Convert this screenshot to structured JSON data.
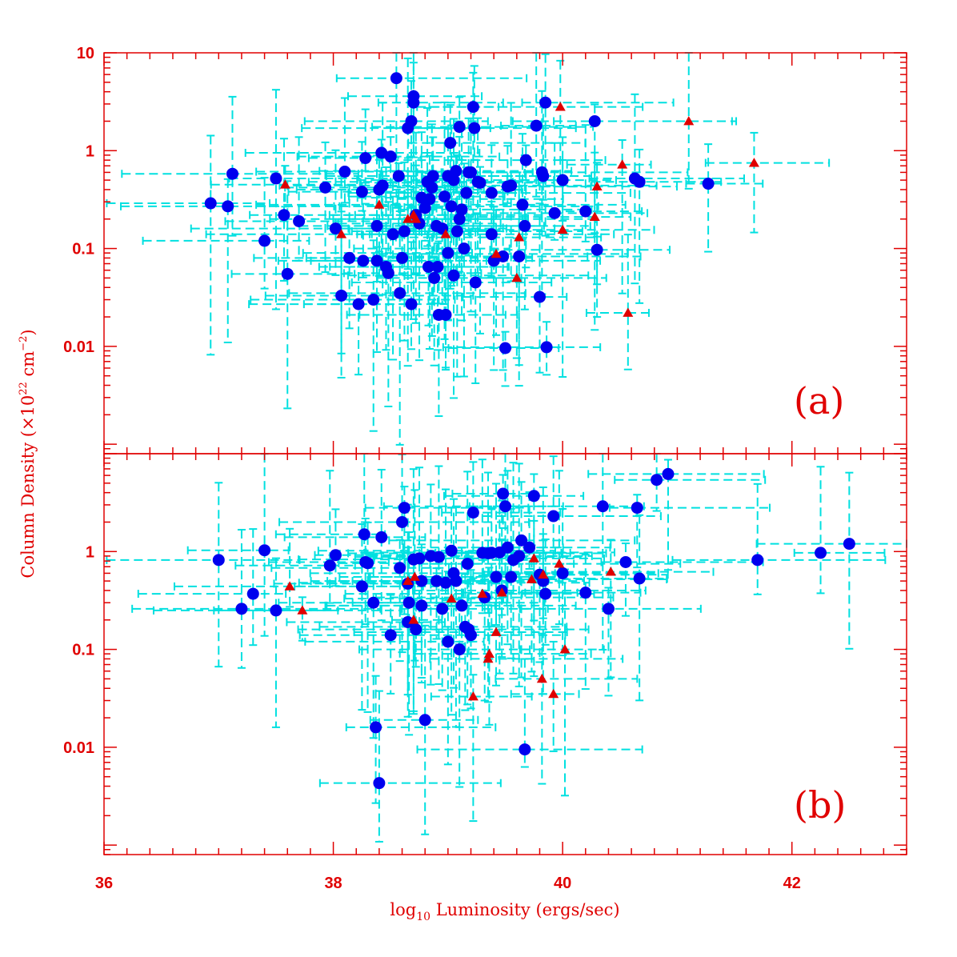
{
  "colors": {
    "axes": "#e00000",
    "errorbar": "#00e0e0",
    "circle": "#0000ee",
    "triangle": "#e00000"
  },
  "chart_data": {
    "type": "scatter",
    "xlabel_base": "log",
    "xlabel_sub": "10",
    "xlabel_rest": " Luminosity (ergs/sec)",
    "ylabel_pre": "Column Density (×10",
    "ylabel_exp1": "22",
    "ylabel_mid": " cm",
    "ylabel_exp2": "−2",
    "ylabel_post": ")",
    "x_range": [
      36,
      43
    ],
    "x_ticks": [
      36,
      38,
      40,
      42
    ],
    "x_tick_labels": [
      "36",
      "38",
      "40",
      "42"
    ],
    "y_scale": "log",
    "grid": false,
    "panels": [
      {
        "label": "(a)",
        "y_range": [
          0.0008,
          10
        ],
        "y_ticks": [
          10,
          1,
          0.1,
          0.01
        ],
        "y_tick_labels": [
          "10",
          "1",
          "0.1",
          "0.01"
        ],
        "circles": [
          [
            36.93,
            0.29
          ],
          [
            37.08,
            0.27
          ],
          [
            37.12,
            0.58
          ],
          [
            37.4,
            0.12
          ],
          [
            37.5,
            0.52
          ],
          [
            37.57,
            0.22
          ],
          [
            37.6,
            0.055
          ],
          [
            37.7,
            0.19
          ],
          [
            37.93,
            0.42
          ],
          [
            38.02,
            0.16
          ],
          [
            38.07,
            0.033
          ],
          [
            38.1,
            0.61
          ],
          [
            38.14,
            0.08
          ],
          [
            38.22,
            0.027
          ],
          [
            38.25,
            0.38
          ],
          [
            38.26,
            0.075
          ],
          [
            38.28,
            0.84
          ],
          [
            38.35,
            0.03
          ],
          [
            38.38,
            0.075
          ],
          [
            38.38,
            0.17
          ],
          [
            38.4,
            0.4
          ],
          [
            38.42,
            0.95
          ],
          [
            38.43,
            0.44
          ],
          [
            38.46,
            0.065
          ],
          [
            38.48,
            0.056
          ],
          [
            38.5,
            0.87
          ],
          [
            38.52,
            0.14
          ],
          [
            38.55,
            5.5
          ],
          [
            38.57,
            0.55
          ],
          [
            38.58,
            0.035
          ],
          [
            38.6,
            0.08
          ],
          [
            38.62,
            0.15
          ],
          [
            38.65,
            1.7
          ],
          [
            38.68,
            0.027
          ],
          [
            38.68,
            2.0
          ],
          [
            38.7,
            3.6
          ],
          [
            38.7,
            3.1
          ],
          [
            38.72,
            0.22
          ],
          [
            38.75,
            0.18
          ],
          [
            38.77,
            0.33
          ],
          [
            38.8,
            0.26
          ],
          [
            38.82,
            0.48
          ],
          [
            38.83,
            0.065
          ],
          [
            38.84,
            0.32
          ],
          [
            38.86,
            0.42
          ],
          [
            38.87,
            0.55
          ],
          [
            38.88,
            0.05
          ],
          [
            38.9,
            0.17
          ],
          [
            38.91,
            0.065
          ],
          [
            38.92,
            0.021
          ],
          [
            38.95,
            0.16
          ],
          [
            38.97,
            0.34
          ],
          [
            38.98,
            0.021
          ],
          [
            39.0,
            0.55
          ],
          [
            39.0,
            0.09
          ],
          [
            39.02,
            1.2
          ],
          [
            39.03,
            0.27
          ],
          [
            39.05,
            0.053
          ],
          [
            39.05,
            0.5
          ],
          [
            39.07,
            0.62
          ],
          [
            39.08,
            0.15
          ],
          [
            39.1,
            1.75
          ],
          [
            39.1,
            0.2
          ],
          [
            39.12,
            0.25
          ],
          [
            39.14,
            0.1
          ],
          [
            39.16,
            0.37
          ],
          [
            39.18,
            0.6
          ],
          [
            39.2,
            0.6
          ],
          [
            39.22,
            2.8
          ],
          [
            39.23,
            1.7
          ],
          [
            39.24,
            0.045
          ],
          [
            39.26,
            0.48
          ],
          [
            39.28,
            0.47
          ],
          [
            39.38,
            0.14
          ],
          [
            39.38,
            0.37
          ],
          [
            39.4,
            0.075
          ],
          [
            39.48,
            0.083
          ],
          [
            39.5,
            0.0096
          ],
          [
            39.52,
            0.43
          ],
          [
            39.55,
            0.44
          ],
          [
            39.62,
            0.083
          ],
          [
            39.65,
            0.28
          ],
          [
            39.67,
            0.17
          ],
          [
            39.68,
            0.8
          ],
          [
            39.77,
            1.8
          ],
          [
            39.8,
            0.032
          ],
          [
            39.82,
            0.6
          ],
          [
            39.83,
            0.55
          ],
          [
            39.85,
            3.1
          ],
          [
            39.86,
            0.0098
          ],
          [
            39.93,
            0.23
          ],
          [
            40.0,
            0.5
          ],
          [
            40.2,
            0.24
          ],
          [
            40.28,
            2.0
          ],
          [
            40.3,
            0.097
          ],
          [
            40.63,
            0.52
          ],
          [
            40.67,
            0.48
          ],
          [
            41.27,
            0.46
          ]
        ],
        "triangles": [
          [
            37.58,
            0.45
          ],
          [
            38.07,
            0.14
          ],
          [
            38.4,
            0.28
          ],
          [
            38.65,
            0.2
          ],
          [
            38.7,
            0.22
          ],
          [
            38.72,
            0.2
          ],
          [
            38.98,
            0.14
          ],
          [
            39.42,
            0.088
          ],
          [
            39.6,
            0.05
          ],
          [
            39.62,
            0.13
          ],
          [
            39.98,
            2.8
          ],
          [
            40.0,
            0.155
          ],
          [
            40.28,
            0.21
          ],
          [
            40.3,
            0.43
          ],
          [
            40.52,
            0.72
          ],
          [
            40.57,
            0.022
          ],
          [
            41.1,
            2.0
          ],
          [
            41.67,
            0.75
          ]
        ]
      },
      {
        "label": "(b)",
        "y_range": [
          0.0008,
          10
        ],
        "y_ticks": [
          1,
          0.1,
          0.01
        ],
        "y_tick_labels": [
          "1",
          "0.1",
          "0.01"
        ],
        "circles": [
          [
            37.0,
            0.82
          ],
          [
            37.2,
            0.26
          ],
          [
            37.3,
            0.37
          ],
          [
            37.4,
            1.03
          ],
          [
            37.5,
            0.25
          ],
          [
            37.97,
            0.72
          ],
          [
            38.02,
            0.92
          ],
          [
            38.25,
            0.44
          ],
          [
            38.27,
            1.5
          ],
          [
            38.28,
            0.78
          ],
          [
            38.3,
            0.76
          ],
          [
            38.35,
            0.3
          ],
          [
            38.37,
            0.016
          ],
          [
            38.4,
            0.0043
          ],
          [
            38.42,
            1.4
          ],
          [
            38.5,
            0.14
          ],
          [
            38.58,
            0.68
          ],
          [
            38.6,
            2.0
          ],
          [
            38.62,
            2.8
          ],
          [
            38.65,
            0.19
          ],
          [
            38.65,
            0.47
          ],
          [
            38.66,
            0.3
          ],
          [
            38.7,
            0.83
          ],
          [
            38.72,
            0.16
          ],
          [
            38.75,
            0.85
          ],
          [
            38.77,
            0.5
          ],
          [
            38.77,
            0.28
          ],
          [
            38.8,
            0.019
          ],
          [
            38.85,
            0.9
          ],
          [
            38.9,
            0.5
          ],
          [
            38.92,
            0.88
          ],
          [
            38.95,
            0.26
          ],
          [
            38.98,
            0.48
          ],
          [
            39.0,
            0.12
          ],
          [
            39.03,
            1.02
          ],
          [
            39.05,
            0.6
          ],
          [
            39.07,
            0.5
          ],
          [
            39.1,
            0.1
          ],
          [
            39.12,
            0.28
          ],
          [
            39.15,
            0.17
          ],
          [
            39.17,
            0.75
          ],
          [
            39.18,
            0.16
          ],
          [
            39.2,
            0.14
          ],
          [
            39.22,
            2.5
          ],
          [
            39.3,
            0.97
          ],
          [
            39.32,
            0.34
          ],
          [
            39.35,
            0.96
          ],
          [
            39.38,
            0.97
          ],
          [
            39.42,
            0.55
          ],
          [
            39.45,
            0.98
          ],
          [
            39.47,
            0.4
          ],
          [
            39.48,
            3.9
          ],
          [
            39.5,
            2.9
          ],
          [
            39.52,
            1.1
          ],
          [
            39.55,
            0.55
          ],
          [
            39.57,
            0.82
          ],
          [
            39.62,
            0.9
          ],
          [
            39.64,
            1.3
          ],
          [
            39.67,
            0.0095
          ],
          [
            39.71,
            1.1
          ],
          [
            39.75,
            3.7
          ],
          [
            39.8,
            0.58
          ],
          [
            39.83,
            0.5
          ],
          [
            39.85,
            0.37
          ],
          [
            39.92,
            2.3
          ],
          [
            40.0,
            0.6
          ],
          [
            40.2,
            0.38
          ],
          [
            40.35,
            2.9
          ],
          [
            40.4,
            0.26
          ],
          [
            40.55,
            0.78
          ],
          [
            40.65,
            2.8
          ],
          [
            40.67,
            0.53
          ],
          [
            40.82,
            5.4
          ],
          [
            40.92,
            6.2
          ],
          [
            41.7,
            0.82
          ],
          [
            42.25,
            0.97
          ],
          [
            42.5,
            1.2
          ]
        ],
        "triangles": [
          [
            37.62,
            0.44
          ],
          [
            37.73,
            0.25
          ],
          [
            38.65,
            0.5
          ],
          [
            38.7,
            0.2
          ],
          [
            38.71,
            0.55
          ],
          [
            39.03,
            0.33
          ],
          [
            39.22,
            0.033
          ],
          [
            39.3,
            0.37
          ],
          [
            39.35,
            0.08
          ],
          [
            39.36,
            0.09
          ],
          [
            39.42,
            0.15
          ],
          [
            39.47,
            0.38
          ],
          [
            39.73,
            0.52
          ],
          [
            39.75,
            0.85
          ],
          [
            39.82,
            0.05
          ],
          [
            39.83,
            0.58
          ],
          [
            39.92,
            0.035
          ],
          [
            39.97,
            0.75
          ],
          [
            40.02,
            0.1
          ],
          [
            40.42,
            0.62
          ]
        ]
      }
    ]
  }
}
